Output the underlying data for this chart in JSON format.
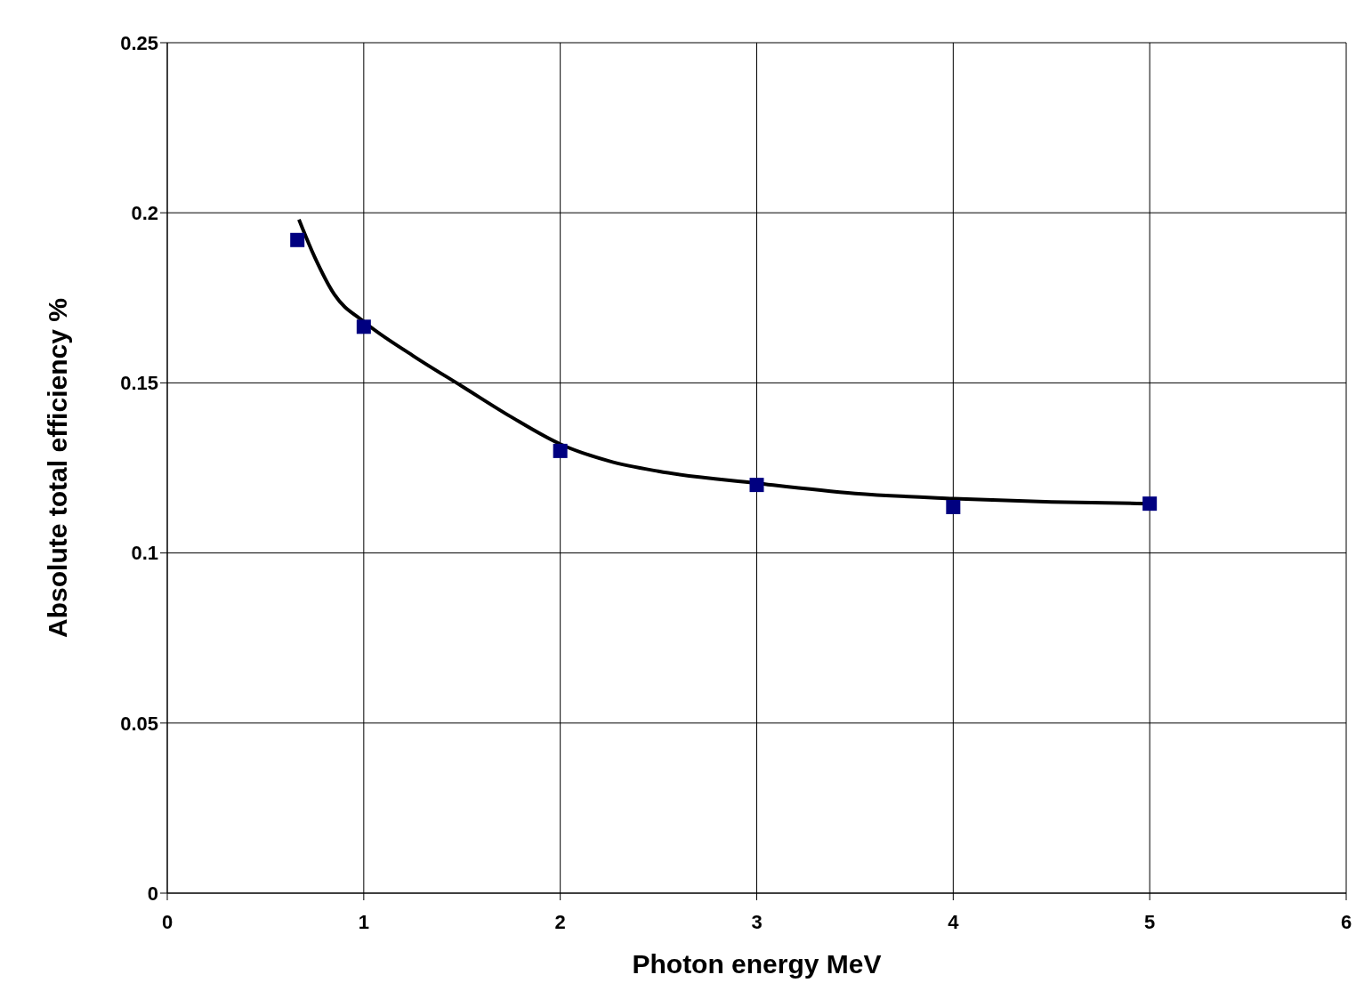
{
  "chart_data": {
    "type": "scatter",
    "xlabel": "Photon energy   MeV",
    "ylabel": "Absolute total efficiency %",
    "xlim": [
      0,
      6
    ],
    "xticks": [
      0,
      1,
      2,
      3,
      4,
      5,
      6
    ],
    "ylim": [
      0,
      0.25
    ],
    "yticks": [
      0,
      0.05,
      0.1,
      0.15,
      0.2,
      0.25
    ],
    "grid": true,
    "series": [
      {
        "type": "scatter",
        "color": "#000080",
        "marker": "square",
        "x": [
          0.662,
          1,
          2,
          3,
          4,
          5
        ],
        "values": [
          0.192,
          0.1665,
          0.13,
          0.12,
          0.1135,
          0.1145
        ]
      },
      {
        "type": "line",
        "color": "#000000",
        "marker": "none",
        "line_style": "solid",
        "x": [
          0.67,
          0.75,
          0.85,
          1,
          1.25,
          1.5,
          1.75,
          2,
          2.25,
          2.5,
          3,
          3.5,
          4,
          4.5,
          5
        ],
        "values": [
          0.198,
          0.187,
          0.176,
          0.168,
          0.158,
          0.149,
          0.14,
          0.132,
          0.127,
          0.124,
          0.1205,
          0.1175,
          0.116,
          0.115,
          0.1145
        ]
      }
    ]
  }
}
